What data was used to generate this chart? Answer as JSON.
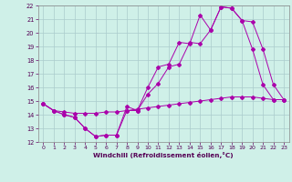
{
  "xlabel": "Windchill (Refroidissement éolien,°C)",
  "bg_color": "#cff0e8",
  "line_color": "#aa00aa",
  "grid_color": "#aacccc",
  "xlim": [
    -0.5,
    23.5
  ],
  "ylim": [
    12,
    22
  ],
  "yticks": [
    12,
    13,
    14,
    15,
    16,
    17,
    18,
    19,
    20,
    21,
    22
  ],
  "xticks": [
    0,
    1,
    2,
    3,
    4,
    5,
    6,
    7,
    8,
    9,
    10,
    11,
    12,
    13,
    14,
    15,
    16,
    17,
    18,
    19,
    20,
    21,
    22,
    23
  ],
  "line1_x": [
    0,
    1,
    2,
    3,
    4,
    5,
    6,
    7,
    8,
    9,
    10,
    11,
    12,
    13,
    14,
    15,
    16,
    17,
    18,
    19,
    20,
    21,
    22,
    23
  ],
  "line1_y": [
    14.8,
    14.3,
    14.0,
    13.8,
    13.0,
    12.4,
    12.5,
    12.5,
    14.6,
    14.3,
    16.0,
    17.5,
    17.7,
    19.3,
    19.2,
    21.3,
    20.2,
    21.9,
    21.8,
    20.9,
    18.8,
    16.2,
    15.1,
    15.1
  ],
  "line2_x": [
    0,
    1,
    2,
    3,
    4,
    5,
    6,
    7,
    8,
    9,
    10,
    11,
    12,
    13,
    14,
    15,
    16,
    17,
    18,
    19,
    20,
    21,
    22,
    23
  ],
  "line2_y": [
    14.8,
    14.3,
    14.0,
    13.8,
    13.0,
    12.4,
    12.5,
    12.5,
    14.3,
    14.3,
    15.5,
    16.3,
    17.5,
    17.7,
    19.3,
    19.2,
    20.2,
    21.9,
    21.8,
    20.9,
    20.8,
    18.8,
    16.2,
    15.1
  ],
  "line3_x": [
    0,
    1,
    2,
    3,
    4,
    5,
    6,
    7,
    8,
    9,
    10,
    11,
    12,
    13,
    14,
    15,
    16,
    17,
    18,
    19,
    20,
    21,
    22,
    23
  ],
  "line3_y": [
    14.8,
    14.3,
    14.2,
    14.1,
    14.1,
    14.1,
    14.2,
    14.2,
    14.3,
    14.4,
    14.5,
    14.6,
    14.7,
    14.8,
    14.9,
    15.0,
    15.1,
    15.2,
    15.3,
    15.3,
    15.3,
    15.2,
    15.1,
    15.1
  ]
}
